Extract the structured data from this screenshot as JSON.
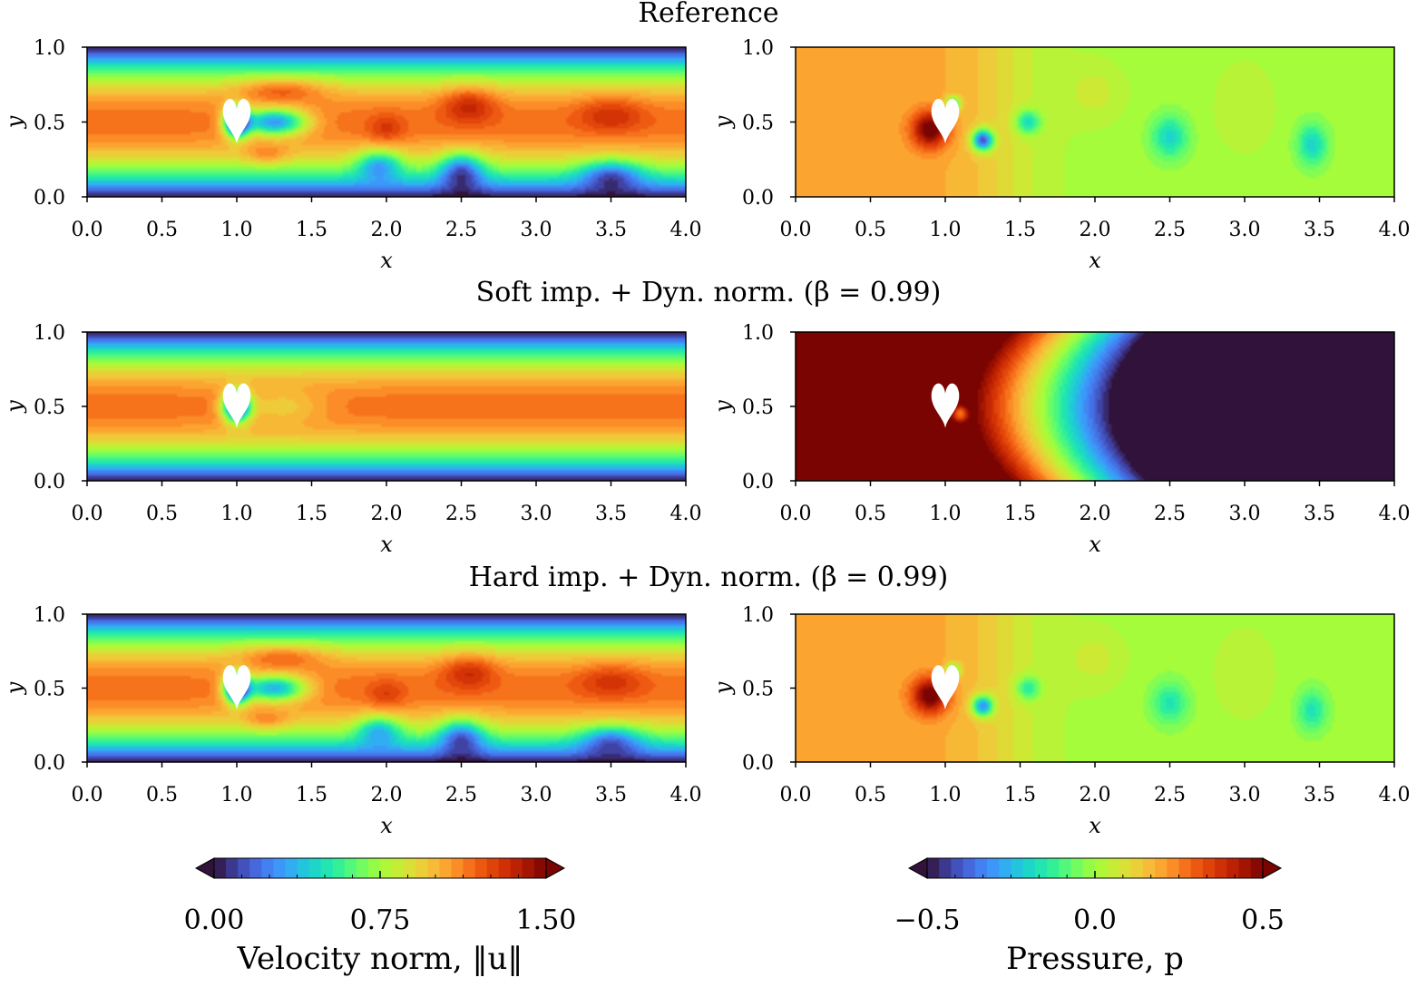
{
  "figure": {
    "rows": [
      {
        "id": "reference",
        "title": "Reference"
      },
      {
        "id": "soft",
        "title": "Soft imp. + Dyn. norm. (β = 0.99)"
      },
      {
        "id": "hard",
        "title": "Hard imp. + Dyn. norm. (β = 0.99)"
      }
    ],
    "x_ticks": [
      "0.0",
      "0.5",
      "1.0",
      "1.5",
      "2.0",
      "2.5",
      "3.0",
      "3.5",
      "4.0"
    ],
    "y_ticks": [
      "0.0",
      "0.5",
      "1.0"
    ],
    "xlabel": "x",
    "ylabel": "y",
    "obstacle": "heart-shaped obstacle at (1.0, 0.5)"
  },
  "colorbars": {
    "velocity": {
      "label": "Velocity norm, ‖u‖",
      "ticks": [
        "0.00",
        "0.75",
        "1.50"
      ]
    },
    "pressure": {
      "label": "Pressure, p",
      "ticks": [
        "−0.5",
        "0.0",
        "0.5"
      ]
    }
  },
  "colors": {
    "turbo": [
      "#30123b",
      "#4145ab",
      "#4675ed",
      "#39a2fc",
      "#1bcfd4",
      "#24eca6",
      "#61fc6c",
      "#a4fc3b",
      "#d1e834",
      "#f3c63a",
      "#fe9b2d",
      "#f36315",
      "#d93806",
      "#b11901",
      "#7a0402"
    ]
  },
  "chart_data": [
    {
      "type": "heatmap",
      "row": "reference",
      "field": "velocity",
      "xlim": [
        0,
        4
      ],
      "ylim": [
        0,
        1
      ],
      "clim": [
        0,
        1.5
      ],
      "base_profile": "parabolic channel flow, peak ~1.15 at y=0.5",
      "features": [
        {
          "x": 1.3,
          "y": 0.72,
          "value": 1.38,
          "kind": "upper shear layer"
        },
        {
          "x": 1.2,
          "y": 0.28,
          "value": 1.32,
          "kind": "lower shear layer"
        },
        {
          "x": 1.3,
          "y": 0.5,
          "value": 0.25,
          "kind": "wake deficit"
        },
        {
          "x": 2.55,
          "y": 0.6,
          "value": 1.35,
          "kind": "vortex street"
        },
        {
          "x": 2.5,
          "y": 0.2,
          "value": 0.45,
          "kind": "vortex street"
        },
        {
          "x": 3.5,
          "y": 0.55,
          "value": 1.28,
          "kind": "vortex street"
        },
        {
          "x": 3.5,
          "y": 0.15,
          "value": 0.55,
          "kind": "vortex street"
        }
      ]
    },
    {
      "type": "heatmap",
      "row": "reference",
      "field": "pressure",
      "xlim": [
        0,
        4
      ],
      "ylim": [
        0,
        1
      ],
      "clim": [
        -0.5,
        0.5
      ],
      "base": "upstream ~0.2, downstream ~0.0",
      "features": [
        {
          "x": 0.9,
          "y": 0.45,
          "value": 0.5,
          "kind": "stagnation"
        },
        {
          "x": 1.25,
          "y": 0.38,
          "value": -0.5,
          "kind": "low-pressure core"
        },
        {
          "x": 1.55,
          "y": 0.5,
          "value": -0.25,
          "kind": "vortex"
        },
        {
          "x": 2.5,
          "y": 0.4,
          "value": -0.2,
          "kind": "vortex"
        },
        {
          "x": 3.45,
          "y": 0.35,
          "value": -0.2,
          "kind": "vortex"
        }
      ]
    },
    {
      "type": "heatmap",
      "row": "soft",
      "field": "velocity",
      "xlim": [
        0,
        4
      ],
      "ylim": [
        0,
        1
      ],
      "clim": [
        0,
        1.5
      ],
      "base_profile": "steady parabolic profile, peak ~1.15 at y=0.5",
      "features": [
        {
          "x": 1.0,
          "y": 0.5,
          "value": 0.0,
          "kind": "obstacle deficit"
        }
      ]
    },
    {
      "type": "heatmap",
      "row": "soft",
      "field": "pressure",
      "xlim": [
        0,
        4
      ],
      "ylim": [
        0,
        1
      ],
      "clim": [
        -0.5,
        0.5
      ],
      "base": "saturated high (0.5) for x < 1.2, linear drop to -0.5 at x ≈ 2.1, saturated low beyond"
    },
    {
      "type": "heatmap",
      "row": "hard",
      "field": "velocity",
      "xlim": [
        0,
        4
      ],
      "ylim": [
        0,
        1
      ],
      "clim": [
        0,
        1.5
      ],
      "base_profile": "parabolic channel flow, peak ~1.15 at y=0.5",
      "features": [
        {
          "x": 1.3,
          "y": 0.72,
          "value": 1.36,
          "kind": "upper shear layer"
        },
        {
          "x": 1.25,
          "y": 0.28,
          "value": 1.28,
          "kind": "lower shear layer"
        },
        {
          "x": 1.25,
          "y": 0.5,
          "value": 0.3,
          "kind": "wake deficit"
        },
        {
          "x": 2.5,
          "y": 0.6,
          "value": 1.3,
          "kind": "vortex street"
        },
        {
          "x": 2.5,
          "y": 0.2,
          "value": 0.5,
          "kind": "vortex street"
        },
        {
          "x": 3.5,
          "y": 0.55,
          "value": 1.28,
          "kind": "vortex street"
        },
        {
          "x": 3.5,
          "y": 0.15,
          "value": 0.55,
          "kind": "vortex street"
        }
      ]
    },
    {
      "type": "heatmap",
      "row": "hard",
      "field": "pressure",
      "xlim": [
        0,
        4
      ],
      "ylim": [
        0,
        1
      ],
      "clim": [
        -0.5,
        0.5
      ],
      "base": "upstream ~0.2, downstream ~0.0",
      "features": [
        {
          "x": 0.9,
          "y": 0.45,
          "value": 0.48,
          "kind": "stagnation"
        },
        {
          "x": 1.25,
          "y": 0.38,
          "value": -0.4,
          "kind": "low-pressure core"
        },
        {
          "x": 1.55,
          "y": 0.5,
          "value": -0.2,
          "kind": "vortex"
        },
        {
          "x": 2.5,
          "y": 0.4,
          "value": -0.18,
          "kind": "vortex"
        },
        {
          "x": 3.45,
          "y": 0.35,
          "value": -0.18,
          "kind": "vortex"
        }
      ]
    }
  ]
}
